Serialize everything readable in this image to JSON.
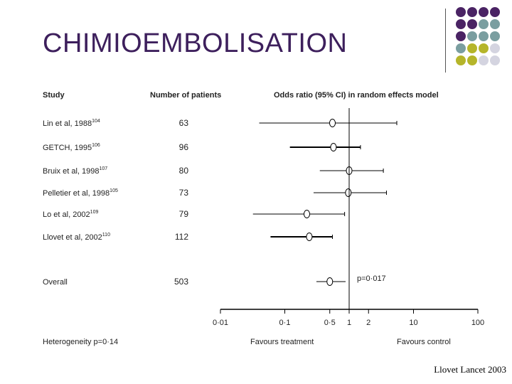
{
  "slide": {
    "title": "CHIMIOEMBOLISATION",
    "citation": "Llovet Lancet 2003",
    "decoration_colors": [
      "#4a2364",
      "#7a9ea0",
      "#b5b52a",
      "#d4d4e0"
    ]
  },
  "chart_data": {
    "type": "forest",
    "headers": {
      "study": "Study",
      "patients": "Number of patients",
      "model": "Odds ratio (95% CI) in random effects model"
    },
    "studies": [
      {
        "label": "Lin et al, 1988",
        "ref": "104",
        "patients": "63",
        "or": 0.55,
        "lo": 0.04,
        "hi": 5.5,
        "marker": "open"
      },
      {
        "label": "GETCH, 1995",
        "ref": "106",
        "patients": "96",
        "or": 0.57,
        "lo": 0.12,
        "hi": 1.5,
        "marker": "open-bold"
      },
      {
        "label": "Bruix et al, 1998",
        "ref": "107",
        "patients": "80",
        "or": 1.0,
        "lo": 0.35,
        "hi": 3.4,
        "marker": "open"
      },
      {
        "label": "Pelletier et al, 1998",
        "ref": "105",
        "patients": "73",
        "or": 0.97,
        "lo": 0.28,
        "hi": 3.8,
        "marker": "open"
      },
      {
        "label": "Lo et al, 2002",
        "ref": "109",
        "patients": "79",
        "or": 0.22,
        "lo": 0.032,
        "hi": 0.85,
        "marker": "open"
      },
      {
        "label": "Llovet et al, 2002",
        "ref": "110",
        "patients": "112",
        "or": 0.24,
        "lo": 0.06,
        "hi": 0.55,
        "marker": "open-bold"
      }
    ],
    "overall": {
      "label": "Overall",
      "patients": "503",
      "or": 0.5,
      "lo": 0.31,
      "hi": 0.88,
      "p_label": "p=0·017"
    },
    "x_axis": {
      "scale": "log",
      "xlim": [
        0.01,
        100
      ],
      "ticks": [
        0.01,
        0.1,
        0.5,
        1,
        2,
        10,
        100
      ],
      "tick_labels": [
        "0·01",
        "0·1",
        "0·5",
        "1",
        "2",
        "10",
        "100"
      ],
      "reference": 1
    },
    "heterogeneity": "Heterogeneity p=0·14",
    "favours_left": "Favours treatment",
    "favours_right": "Favours control"
  }
}
